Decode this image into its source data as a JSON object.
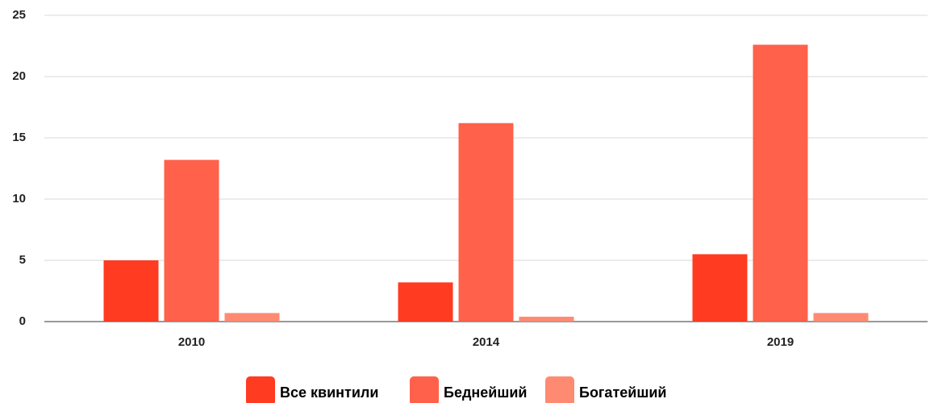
{
  "chart_data": {
    "type": "bar",
    "categories": [
      "2010",
      "2014",
      "2019"
    ],
    "series": [
      {
        "name": "Все квинтили",
        "color": "#ff3b22",
        "values": [
          5.0,
          3.2,
          5.5
        ]
      },
      {
        "name": "Беднейший",
        "color": "#ff614a",
        "values": [
          13.2,
          16.2,
          22.6
        ]
      },
      {
        "name": "Богатейший",
        "color": "#ff8a72",
        "values": [
          0.7,
          0.4,
          0.7
        ]
      }
    ],
    "ylim": [
      0,
      25
    ],
    "yticks": [
      0,
      5,
      10,
      15,
      20,
      25
    ],
    "grid": true,
    "legend": "bottom"
  }
}
